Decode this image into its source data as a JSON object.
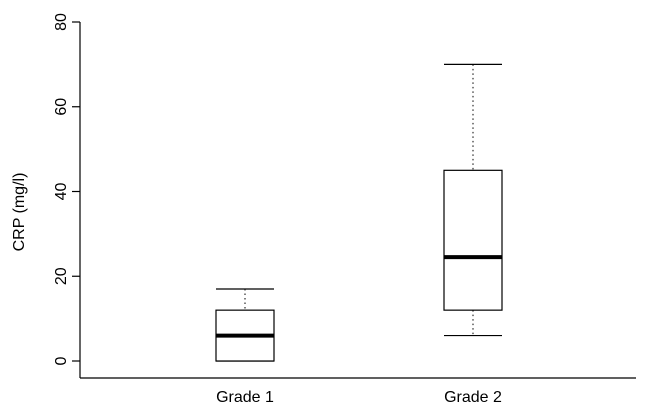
{
  "chart_data": {
    "type": "boxplot",
    "ylabel": "CRP (mg/l)",
    "xlabel": "",
    "ylim": [
      0,
      80
    ],
    "yticks": [
      0,
      20,
      40,
      60,
      80
    ],
    "grid": false,
    "categories": [
      "Grade 1",
      "Grade 2"
    ],
    "boxes": [
      {
        "category": "Grade 1",
        "whisker_low": 0,
        "q1": 0,
        "median": 6,
        "q3": 12,
        "whisker_high": 17
      },
      {
        "category": "Grade 2",
        "whisker_low": 6,
        "q1": 12,
        "median": 24.5,
        "q3": 45,
        "whisker_high": 70
      }
    ]
  }
}
